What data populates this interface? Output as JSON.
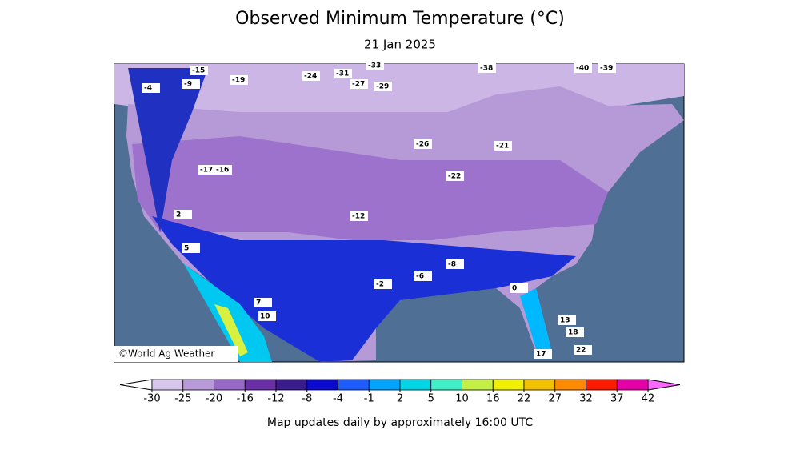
{
  "title": "Observed Minimum Temperature (°C)",
  "subtitle": "21 Jan 2025",
  "copyright": "©World Ag Weather",
  "footer": "Map updates daily by approximately 16:00 UTC",
  "colorbar": {
    "ticks": [
      -30,
      -25,
      -20,
      -16,
      -12,
      -8,
      -4,
      -1,
      2,
      5,
      10,
      16,
      22,
      27,
      32,
      37,
      42
    ],
    "colors": [
      "#d8c6ec",
      "#b99ad9",
      "#9868c6",
      "#6a2ea6",
      "#3b1c8c",
      "#0a0ad0",
      "#1e5cff",
      "#00a4ff",
      "#00d6e6",
      "#40eec8",
      "#c4f046",
      "#f0f000",
      "#f2c200",
      "#ff8a00",
      "#ff1a00",
      "#e600a8"
    ],
    "under_color": "#ffffff",
    "over_color": "#ff66ff"
  },
  "stations": [
    -33,
    -38,
    -40,
    -39,
    -27,
    -29,
    -31,
    -24,
    -26,
    -22,
    -19,
    -15,
    -9,
    -4,
    -17,
    -12,
    -8,
    -6,
    -2,
    0,
    2,
    5,
    7,
    10,
    13,
    18,
    22,
    17,
    -21,
    -16
  ]
}
